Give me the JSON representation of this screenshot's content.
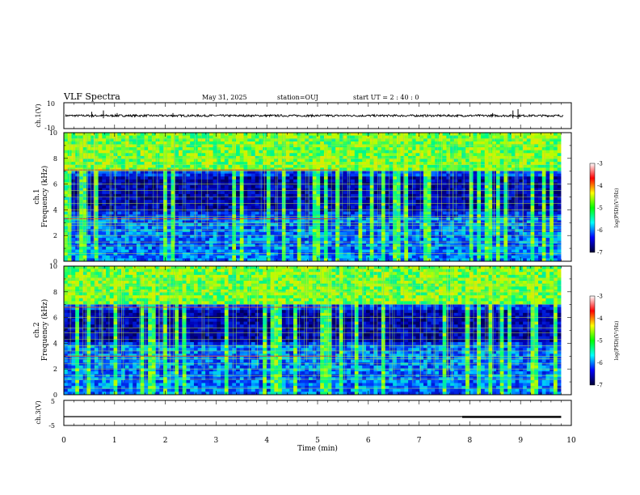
{
  "header": {
    "title": "VLF Spectra",
    "date": "May 31, 2025",
    "station": "station=OUJ",
    "start_time": "start  UT =   2 : 40 : 0"
  },
  "chart_data": [
    {
      "type": "line",
      "panel": "ch1-waveform",
      "ylabel": "ch.1(V)",
      "ylim": [
        -10,
        10
      ],
      "yticks": [
        "10",
        "-10"
      ],
      "xlim": [
        0,
        10
      ],
      "baseline": 0,
      "spikes": [
        {
          "x": 0.55,
          "y": 3
        },
        {
          "x": 0.78,
          "y": 4
        },
        {
          "x": 1.05,
          "y": 2
        },
        {
          "x": 2.15,
          "y": 2
        },
        {
          "x": 2.9,
          "y": 1
        },
        {
          "x": 8.45,
          "y": 2
        },
        {
          "x": 8.85,
          "y": 4
        },
        {
          "x": 8.95,
          "y": 5
        }
      ],
      "color": "#000000"
    },
    {
      "type": "heatmap",
      "panel": "ch1-spectrogram",
      "ylabel": "ch.1",
      "ylabel2": "Frequency (kHz)",
      "ylim": [
        0,
        10
      ],
      "yticks": [
        "0",
        "2",
        "4",
        "6",
        "8",
        "10"
      ],
      "xlim": [
        0,
        9.8
      ],
      "dark_band_khz": [
        3.8,
        6.5
      ],
      "bright_band_khz": [
        0,
        3.5
      ],
      "lines_khz": [
        0.6,
        1.2,
        1.5,
        2.0,
        2.4,
        2.8,
        3.0,
        3.3,
        3.5,
        4.0,
        4.5,
        5.0,
        5.5,
        6.0,
        7.0,
        7.5,
        8.0,
        9.0,
        9.5
      ],
      "red_lines_khz": [
        3.3,
        7.1
      ],
      "colorbar": {
        "label": "log(PSD)(V²/Hz)",
        "range": [
          -7,
          -3
        ],
        "ticks": [
          "-3",
          "-4",
          "-5",
          "-6",
          "-7"
        ],
        "colors": [
          "#ffffff",
          "#ff0000",
          "#ffff00",
          "#00ff00",
          "#00ffff",
          "#0000ff",
          "#000033"
        ]
      }
    },
    {
      "type": "heatmap",
      "panel": "ch2-spectrogram",
      "ylabel": "ch.2",
      "ylabel2": "Frequency (kHz)",
      "ylim": [
        0,
        10
      ],
      "yticks": [
        "0",
        "2",
        "4",
        "6",
        "8",
        "10"
      ],
      "xlim": [
        0,
        9.8
      ],
      "dark_band_khz": [
        4.2,
        6.5
      ],
      "bright_band_khz": [
        0,
        3.8
      ],
      "lines_khz": [
        0.5,
        1.2,
        1.5,
        2.0,
        2.4,
        2.8,
        3.0,
        3.4,
        3.8,
        4.3,
        4.8,
        5.2,
        6.0,
        7.0,
        8.0,
        8.5,
        9.0
      ],
      "red_lines_khz": [
        3.0,
        6.8
      ],
      "colorbar": {
        "label": "log(PSD)(V²/Hz)",
        "range": [
          -7,
          -3
        ],
        "ticks": [
          "-3",
          "-4",
          "-5",
          "-6",
          "-7"
        ],
        "colors": [
          "#ffffff",
          "#ff0000",
          "#ffff00",
          "#00ff00",
          "#00ffff",
          "#0000ff",
          "#000033"
        ]
      }
    },
    {
      "type": "line",
      "panel": "ch3-trace",
      "ylabel": "ch.3(V)",
      "ylim": [
        -5,
        5
      ],
      "yticks": [
        "5",
        "-5"
      ],
      "xlim": [
        0,
        10
      ],
      "values": [
        {
          "x": 0,
          "y": -1.5
        },
        {
          "x": 7.85,
          "y": -1.5
        },
        {
          "x": 7.85,
          "y": -1.2
        },
        {
          "x": 9.8,
          "y": -1.2
        }
      ],
      "color": "#000000"
    }
  ],
  "x_axis": {
    "label": "Time (min)",
    "ticks": [
      "0",
      "1",
      "2",
      "3",
      "4",
      "5",
      "6",
      "7",
      "8",
      "9",
      "10"
    ]
  }
}
